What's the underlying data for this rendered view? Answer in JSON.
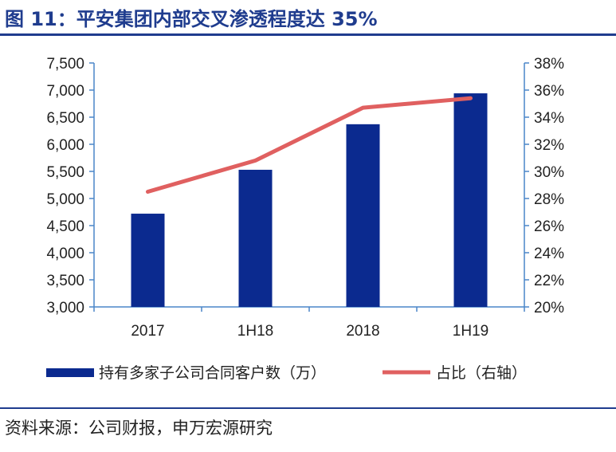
{
  "header": {
    "title": "图 11：平安集团内部交叉渗透程度达 35%"
  },
  "footer": {
    "source": "资料来源：公司财报，申万宏源研究"
  },
  "colors": {
    "bar": "#0b2a8f",
    "line": "#e06060",
    "rule": "#1f3c8e",
    "axis": "#4a86c8"
  },
  "chart_data": {
    "type": "bar",
    "categories": [
      "2017",
      "1H18",
      "2018",
      "1H19"
    ],
    "series": [
      {
        "name": "持有多家子公司合同客户数（万）",
        "type": "bar",
        "axis": "left",
        "values": [
          4720,
          5530,
          6370,
          6940
        ]
      },
      {
        "name": "占比（右轴）",
        "type": "line",
        "axis": "right",
        "values": [
          28.5,
          30.8,
          34.7,
          35.4
        ]
      }
    ],
    "ylim": [
      3000,
      7500
    ],
    "yticks": [
      "3,000",
      "3,500",
      "4,000",
      "4,500",
      "5,000",
      "5,500",
      "6,000",
      "6,500",
      "7,000",
      "7,500"
    ],
    "y2lim": [
      20,
      38
    ],
    "y2ticks": [
      "20%",
      "22%",
      "24%",
      "26%",
      "28%",
      "30%",
      "32%",
      "34%",
      "36%",
      "38%"
    ],
    "legend_position": "bottom",
    "grid": false
  }
}
